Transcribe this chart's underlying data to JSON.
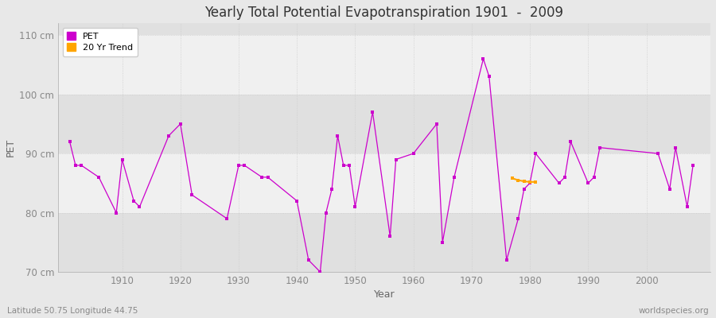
{
  "title": "Yearly Total Potential Evapotranspiration 1901  -  2009",
  "xlabel": "Year",
  "ylabel": "PET",
  "footnote_left": "Latitude 50.75 Longitude 44.75",
  "footnote_right": "worldspecies.org",
  "ylim": [
    70,
    112
  ],
  "xlim": [
    1899,
    2011
  ],
  "yticks": [
    70,
    80,
    90,
    100,
    110
  ],
  "ytick_labels": [
    "70 cm",
    "80 cm",
    "90 cm",
    "100 cm",
    "110 cm"
  ],
  "xticks": [
    1910,
    1920,
    1930,
    1940,
    1950,
    1960,
    1970,
    1980,
    1990,
    2000
  ],
  "pet_color": "#CC00CC",
  "trend_color": "#FFA500",
  "bg_color": "#E8E8E8",
  "band_light": "#F0F0F0",
  "band_dark": "#E0E0E0",
  "grid_color": "#CCCCCC",
  "years": [
    1901,
    1902,
    1903,
    1904,
    1905,
    1906,
    1907,
    1908,
    1909,
    1910,
    1911,
    1912,
    1913,
    1914,
    1915,
    1916,
    1917,
    1918,
    1919,
    1920,
    1921,
    1922,
    1923,
    1924,
    1925,
    1926,
    1927,
    1928,
    1929,
    1930,
    1931,
    1932,
    1933,
    1934,
    1935,
    1936,
    1937,
    1938,
    1939,
    1940,
    1941,
    1942,
    1943,
    1944,
    1945,
    1946,
    1947,
    1948,
    1949,
    1950,
    1951,
    1952,
    1953,
    1954,
    1955,
    1956,
    1957,
    1958,
    1959,
    1960,
    1961,
    1962,
    1963,
    1964,
    1965,
    1966,
    1967,
    1968,
    1969,
    1970,
    1971,
    1972,
    1973,
    1974,
    1975,
    1976,
    1977,
    1978,
    1979,
    1980,
    1981,
    1982,
    1983,
    1984,
    1985,
    1986,
    1987,
    1988,
    1989,
    1990,
    1991,
    1992,
    1993,
    1994,
    1995,
    1996,
    1997,
    1998,
    1999,
    2000,
    2001,
    2002,
    2003,
    2004,
    2005,
    2006,
    2007,
    2008,
    2009
  ],
  "pet_values": [
    92,
    88,
    88,
    null,
    null,
    86,
    null,
    null,
    80,
    89,
    null,
    82,
    81,
    null,
    null,
    null,
    null,
    93,
    null,
    95,
    null,
    83,
    null,
    null,
    null,
    null,
    null,
    79,
    null,
    88,
    88,
    null,
    null,
    86,
    86,
    null,
    null,
    null,
    null,
    82,
    null,
    72,
    null,
    70,
    80,
    84,
    93,
    88,
    88,
    81,
    null,
    null,
    97,
    null,
    null,
    76,
    89,
    null,
    null,
    90,
    null,
    null,
    null,
    95,
    75,
    null,
    86,
    null,
    null,
    null,
    null,
    106,
    103,
    null,
    null,
    72,
    null,
    79,
    84,
    85,
    90,
    null,
    null,
    null,
    85,
    86,
    92,
    null,
    null,
    85,
    86,
    91,
    null,
    null,
    null,
    null,
    null,
    null,
    null,
    null,
    null,
    90,
    null,
    84,
    91,
    null,
    81,
    88,
    null
  ],
  "trend_years": [
    1977,
    1978,
    1979,
    1980,
    1981
  ],
  "trend_values": [
    85.8,
    85.5,
    85.3,
    85.2,
    85.2
  ]
}
